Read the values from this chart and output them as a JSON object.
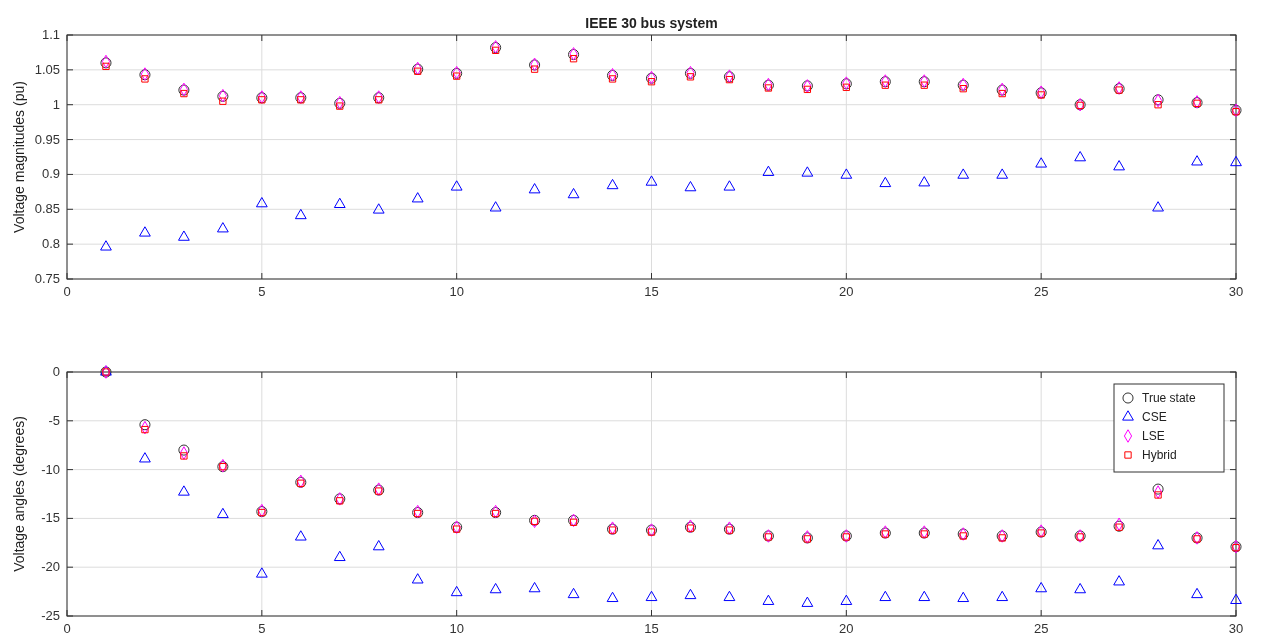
{
  "chart_data": [
    {
      "type": "scatter",
      "title": "IEEE 30 bus system",
      "ylabel": "Voltage magnitudes (pu)",
      "x": [
        1,
        2,
        3,
        4,
        5,
        6,
        7,
        8,
        9,
        10,
        11,
        12,
        13,
        14,
        15,
        16,
        17,
        18,
        19,
        20,
        21,
        22,
        23,
        24,
        25,
        26,
        27,
        28,
        29,
        30
      ],
      "xlim": [
        0,
        30
      ],
      "xticks": [
        0,
        5,
        10,
        15,
        20,
        25,
        30
      ],
      "ylim": [
        0.75,
        1.1
      ],
      "yticks": [
        0.75,
        0.8,
        0.85,
        0.9,
        0.95,
        1,
        1.05,
        1.1
      ],
      "grid": true,
      "legend": false,
      "series": [
        {
          "color": "#333333",
          "marker": "circle",
          "values": [
            1.06,
            1.043,
            1.021,
            1.012,
            1.01,
            1.01,
            1.002,
            1.01,
            1.051,
            1.045,
            1.082,
            1.057,
            1.072,
            1.042,
            1.038,
            1.045,
            1.04,
            1.028,
            1.027,
            1.03,
            1.033,
            1.033,
            1.028,
            1.021,
            1.017,
            1.0,
            1.023,
            1.007,
            1.003,
            0.992
          ]
        },
        {
          "color": "#0000ff",
          "marker": "triangle",
          "values": [
            0.796,
            0.816,
            0.81,
            0.822,
            0.858,
            0.841,
            0.857,
            0.849,
            0.865,
            0.882,
            0.852,
            0.878,
            0.871,
            0.884,
            0.889,
            0.881,
            0.882,
            0.903,
            0.902,
            0.899,
            0.887,
            0.888,
            0.899,
            0.899,
            0.915,
            0.924,
            0.911,
            0.852,
            0.918,
            0.917
          ]
        },
        {
          "color": "#ff00ff",
          "marker": "diamond",
          "values": [
            1.062,
            1.044,
            1.022,
            1.013,
            1.011,
            1.011,
            1.003,
            1.011,
            1.052,
            1.046,
            1.083,
            1.058,
            1.073,
            1.043,
            1.039,
            1.046,
            1.041,
            1.029,
            1.027,
            1.031,
            1.034,
            1.034,
            1.029,
            1.022,
            1.018,
            1.0,
            1.024,
            1.006,
            1.004,
            0.992
          ]
        },
        {
          "color": "#ff0000",
          "marker": "square",
          "values": [
            1.055,
            1.037,
            1.016,
            1.005,
            1.007,
            1.007,
            0.998,
            1.007,
            1.048,
            1.041,
            1.078,
            1.051,
            1.066,
            1.037,
            1.033,
            1.04,
            1.036,
            1.024,
            1.022,
            1.025,
            1.028,
            1.028,
            1.023,
            1.016,
            1.014,
            0.999,
            1.021,
            1.0,
            1.002,
            0.99
          ]
        }
      ]
    },
    {
      "type": "scatter",
      "ylabel": "Voltage angles (degrees)",
      "x": [
        1,
        2,
        3,
        4,
        5,
        6,
        7,
        8,
        9,
        10,
        11,
        12,
        13,
        14,
        15,
        16,
        17,
        18,
        19,
        20,
        21,
        22,
        23,
        24,
        25,
        26,
        27,
        28,
        29,
        30
      ],
      "xlim": [
        0,
        30
      ],
      "xticks": [
        0,
        5,
        10,
        15,
        20,
        25,
        30
      ],
      "ylim": [
        -25,
        0
      ],
      "yticks": [
        -25,
        -20,
        -15,
        -10,
        -5,
        0
      ],
      "grid": true,
      "legend": "top right",
      "series": [
        {
          "name": "True state",
          "color": "#333333",
          "marker": "circle",
          "values": [
            0,
            -5.4,
            -8.0,
            -9.7,
            -14.3,
            -11.3,
            -13.0,
            -12.1,
            -14.4,
            -15.9,
            -14.4,
            -15.2,
            -15.2,
            -16.1,
            -16.2,
            -15.9,
            -16.1,
            -16.8,
            -17.0,
            -16.8,
            -16.5,
            -16.5,
            -16.6,
            -16.8,
            -16.4,
            -16.8,
            -15.8,
            -12.0,
            -17.0,
            -17.9
          ]
        },
        {
          "name": "CSE",
          "color": "#0000ff",
          "marker": "triangle",
          "values": [
            0,
            -8.9,
            -12.3,
            -14.6,
            -20.7,
            -16.9,
            -19.0,
            -17.9,
            -21.3,
            -22.6,
            -22.3,
            -22.2,
            -22.8,
            -23.2,
            -23.1,
            -22.9,
            -23.1,
            -23.5,
            -23.7,
            -23.5,
            -23.1,
            -23.1,
            -23.2,
            -23.1,
            -22.2,
            -22.3,
            -21.5,
            -17.8,
            -22.8,
            -23.4
          ]
        },
        {
          "name": "LSE",
          "color": "#ff00ff",
          "marker": "diamond",
          "values": [
            0,
            -5.7,
            -8.3,
            -9.6,
            -14.2,
            -11.2,
            -13.0,
            -12.0,
            -14.3,
            -15.9,
            -14.3,
            -15.3,
            -15.2,
            -16.0,
            -16.2,
            -15.8,
            -16.0,
            -16.8,
            -16.9,
            -16.8,
            -16.4,
            -16.4,
            -16.6,
            -16.8,
            -16.3,
            -16.8,
            -15.6,
            -12.3,
            -17.0,
            -17.9
          ]
        },
        {
          "name": "Hybrid",
          "color": "#ff0000",
          "marker": "square",
          "values": [
            0,
            -5.9,
            -8.6,
            -9.7,
            -14.4,
            -11.4,
            -13.2,
            -12.2,
            -14.5,
            -16.1,
            -14.5,
            -15.3,
            -15.4,
            -16.2,
            -16.4,
            -16.0,
            -16.2,
            -16.9,
            -17.1,
            -16.9,
            -16.6,
            -16.6,
            -16.8,
            -17.0,
            -16.5,
            -16.9,
            -15.9,
            -12.6,
            -17.1,
            -18.0
          ]
        }
      ]
    }
  ]
}
